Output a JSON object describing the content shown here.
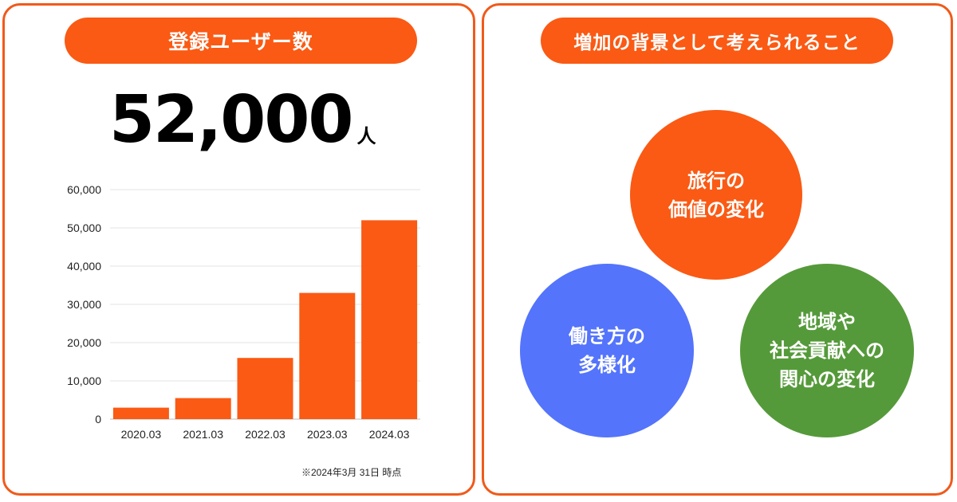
{
  "left": {
    "title": "登録ユーザー数",
    "total_value": "52,000",
    "total_unit": "人",
    "footnote": "※2024年3月 31日 時点"
  },
  "right": {
    "title": "増加の背景として考えられること",
    "circles": [
      {
        "lines": [
          "旅行の",
          "価値の変化"
        ],
        "color": "#fa5a14"
      },
      {
        "lines": [
          "働き方の",
          "多様化"
        ],
        "color": "#5474fb"
      },
      {
        "lines": [
          "地域や",
          "社会貢献への",
          "関心の変化"
        ],
        "color": "#559a3a"
      }
    ]
  },
  "chart_data": {
    "type": "bar",
    "categories": [
      "2020.03",
      "2021.03",
      "2022.03",
      "2023.03",
      "2024.03"
    ],
    "values": [
      3000,
      5500,
      16000,
      33000,
      52000
    ],
    "yticks": [
      "0",
      "10,000",
      "20,000",
      "30,000",
      "40,000",
      "50,000",
      "60,000"
    ],
    "ylim": [
      0,
      60000
    ],
    "bar_color": "#fa5a14",
    "grid": true
  }
}
